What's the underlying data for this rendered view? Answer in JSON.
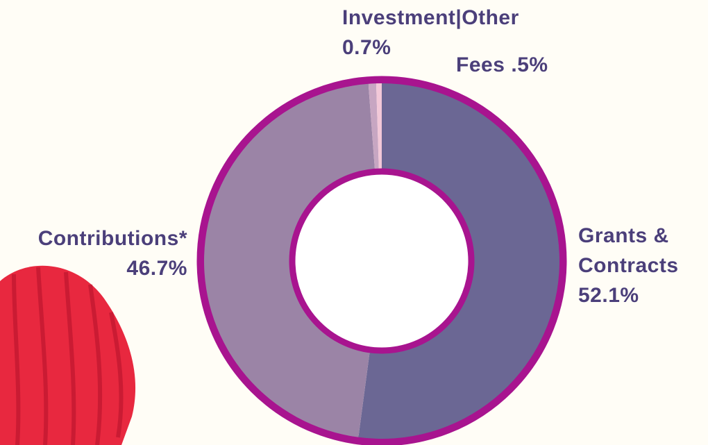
{
  "chart_data": {
    "type": "donut",
    "categories": [
      "Grants & Contracts",
      "Contributions*",
      "Investment|Other",
      "Fees"
    ],
    "values": [
      52.1,
      46.7,
      0.7,
      0.5
    ],
    "value_labels": [
      "52.1%",
      "46.7%",
      "0.7%",
      ".5%"
    ],
    "colors": [
      "#6b6794",
      "#9b84a6",
      "#c7a6c2",
      "#f2c8d8"
    ],
    "border_color": "#a8148f"
  }
}
